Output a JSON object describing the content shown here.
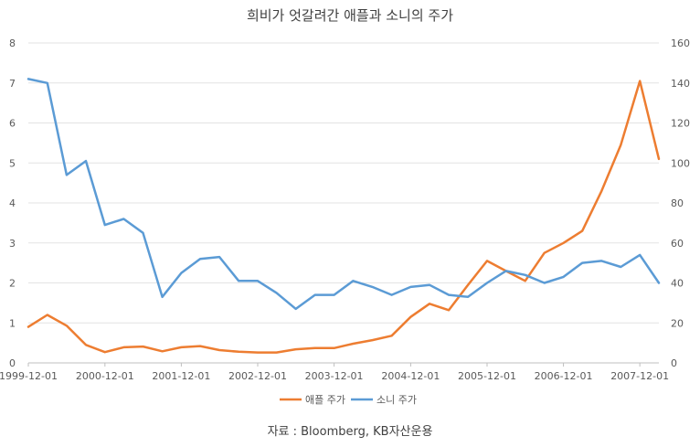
{
  "chart_data": {
    "type": "line",
    "title": "희비가 엇갈려간 애플과 소니의 주가",
    "source": "자료 : Bloomberg, KB자산운용",
    "x_tick_labels": [
      "1999-12-01",
      "2000-12-01",
      "2001-12-01",
      "2002-12-01",
      "2003-12-01",
      "2004-12-01",
      "2005-12-01",
      "2006-12-01",
      "2007-12-01"
    ],
    "y_left": {
      "min": 0,
      "max": 8,
      "step": 1,
      "ticks": [
        "0",
        "1",
        "2",
        "3",
        "4",
        "5",
        "6",
        "7",
        "8"
      ]
    },
    "y_right": {
      "min": 0,
      "max": 160,
      "step": 20,
      "ticks": [
        "0",
        "20",
        "40",
        "60",
        "80",
        "100",
        "120",
        "140",
        "160"
      ]
    },
    "grid": true,
    "legend_position": "bottom",
    "series": [
      {
        "name": "애플 주가",
        "axis": "left",
        "color": "#ED7D31",
        "x": [
          "1999-12-01",
          "2000-03-01",
          "2000-06-01",
          "2000-09-01",
          "2000-12-01",
          "2001-03-01",
          "2001-06-01",
          "2001-09-01",
          "2001-12-01",
          "2002-03-01",
          "2002-06-01",
          "2002-09-01",
          "2002-12-01",
          "2003-03-01",
          "2003-06-01",
          "2003-09-01",
          "2003-12-01",
          "2004-03-01",
          "2004-06-01",
          "2004-09-01",
          "2004-12-01",
          "2005-03-01",
          "2005-06-01",
          "2005-09-01",
          "2005-12-01",
          "2006-03-01",
          "2006-06-01",
          "2006-09-01",
          "2006-12-01",
          "2007-03-01",
          "2007-06-01",
          "2007-09-01",
          "2007-12-01",
          "2008-03-01"
        ],
        "values": [
          0.9,
          1.2,
          0.93,
          0.45,
          0.27,
          0.39,
          0.41,
          0.29,
          0.39,
          0.42,
          0.32,
          0.28,
          0.26,
          0.26,
          0.34,
          0.37,
          0.37,
          0.48,
          0.57,
          0.68,
          1.15,
          1.48,
          1.32,
          1.95,
          2.55,
          2.3,
          2.05,
          2.75,
          3.0,
          3.3,
          4.3,
          5.45,
          7.05,
          5.1
        ]
      },
      {
        "name": "소니 주가",
        "axis": "right",
        "color": "#5B9BD5",
        "x": [
          "1999-12-01",
          "2000-03-01",
          "2000-06-01",
          "2000-09-01",
          "2000-12-01",
          "2001-03-01",
          "2001-06-01",
          "2001-09-01",
          "2001-12-01",
          "2002-03-01",
          "2002-06-01",
          "2002-09-01",
          "2002-12-01",
          "2003-03-01",
          "2003-06-01",
          "2003-09-01",
          "2003-12-01",
          "2004-03-01",
          "2004-06-01",
          "2004-09-01",
          "2004-12-01",
          "2005-03-01",
          "2005-06-01",
          "2005-09-01",
          "2005-12-01",
          "2006-03-01",
          "2006-06-01",
          "2006-09-01",
          "2006-12-01",
          "2007-03-01",
          "2007-06-01",
          "2007-09-01",
          "2007-12-01",
          "2008-03-01"
        ],
        "values": [
          142,
          140,
          94,
          101,
          69,
          72,
          65,
          33,
          45,
          52,
          53,
          41,
          41,
          35,
          27,
          34,
          34,
          41,
          38,
          34,
          38,
          39,
          34,
          33,
          40,
          46,
          44,
          40,
          43,
          50,
          51,
          48,
          54,
          40
        ]
      }
    ]
  }
}
